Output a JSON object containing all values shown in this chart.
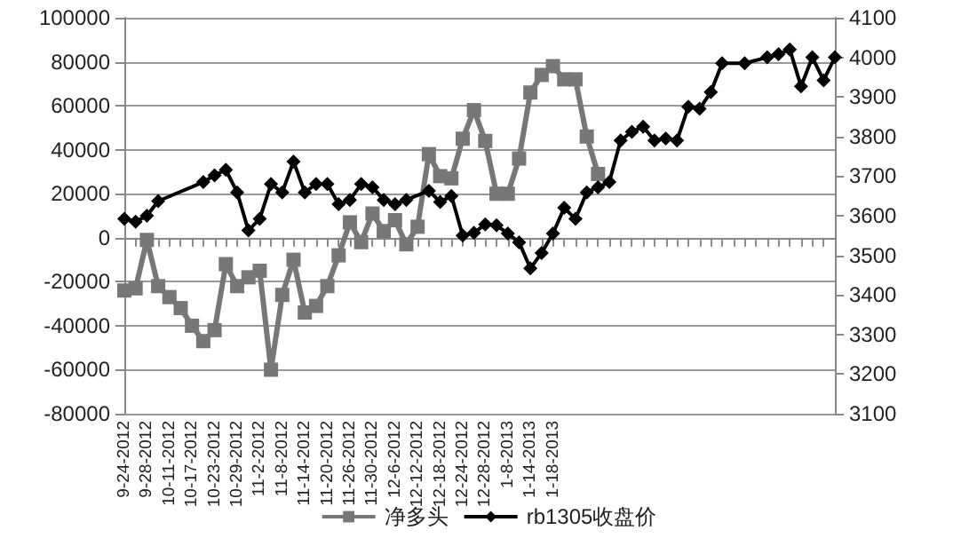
{
  "chart_data": {
    "type": "line",
    "categories": [
      "9-24-2012",
      null,
      "9-28-2012",
      null,
      "10-11-2012",
      null,
      "10-17-2012",
      null,
      "10-23-2012",
      null,
      "10-29-2012",
      null,
      "11-2-2012",
      null,
      "11-8-2012",
      null,
      "11-14-2012",
      null,
      "11-20-2012",
      null,
      "11-26-2012",
      null,
      "11-30-2012",
      null,
      "12-6-2012",
      null,
      "12-12-2012",
      null,
      "12-18-2012",
      null,
      "12-24-2012",
      null,
      "12-28-2012",
      null,
      "1-8-2013",
      null,
      "1-14-2013",
      null,
      "1-18-2013",
      null,
      null,
      null,
      null,
      null,
      null,
      null,
      null,
      null,
      null,
      null,
      null,
      null,
      null,
      null,
      null,
      null,
      null,
      null,
      null,
      null,
      null,
      null,
      null,
      null
    ],
    "series": [
      {
        "name": "净多头",
        "color": "#777777",
        "marker": "square",
        "values": [
          -24000,
          -23000,
          -1000,
          -22000,
          -27000,
          -32000,
          -40000,
          -47000,
          -42000,
          -12000,
          -22000,
          -18000,
          -15000,
          -60000,
          -26000,
          -10000,
          -34000,
          -31000,
          -22000,
          -8000,
          7000,
          -2000,
          11000,
          3000,
          8000,
          -3000,
          5000,
          38000,
          28000,
          27000,
          45000,
          58000,
          44000,
          20000,
          20000,
          36000,
          66000,
          74000,
          78000,
          72000,
          72000,
          46000,
          29000,
          null,
          null,
          null,
          null,
          null,
          null,
          null,
          null,
          null,
          null,
          null,
          null,
          null,
          null,
          null,
          null,
          null,
          null,
          null,
          null,
          null
        ]
      },
      {
        "name": "rb1305收盘价",
        "color": "#000000",
        "marker": "diamond",
        "axis": "y2",
        "values": [
          3592,
          3585,
          3600,
          3637,
          null,
          null,
          null,
          3685,
          3702,
          3716,
          3659,
          3563,
          3592,
          3680,
          3659,
          3737,
          3659,
          3680,
          3680,
          3629,
          3640,
          3680,
          3672,
          3640,
          3629,
          3640,
          null,
          3663,
          3635,
          3650,
          3550,
          3557,
          3578,
          3576,
          3555,
          3533,
          3467,
          3506,
          3555,
          3620,
          3592,
          3659,
          3672,
          3685,
          3790,
          3812,
          3825,
          3790,
          3795,
          3790,
          3875,
          3870,
          3912,
          3985,
          null,
          3985,
          null,
          4000,
          4008,
          4020,
          3927,
          4000,
          3942,
          4000
        ]
      }
    ],
    "ylim": [
      -80000,
      100000
    ],
    "yticks": [
      -80000,
      -60000,
      -40000,
      -20000,
      0,
      20000,
      40000,
      60000,
      80000,
      100000
    ],
    "y2lim": [
      3100,
      4100
    ],
    "y2ticks": [
      3100,
      3200,
      3300,
      3400,
      3500,
      3600,
      3700,
      3800,
      3900,
      4000,
      4100
    ],
    "grid": "y",
    "legend": "bottom"
  }
}
